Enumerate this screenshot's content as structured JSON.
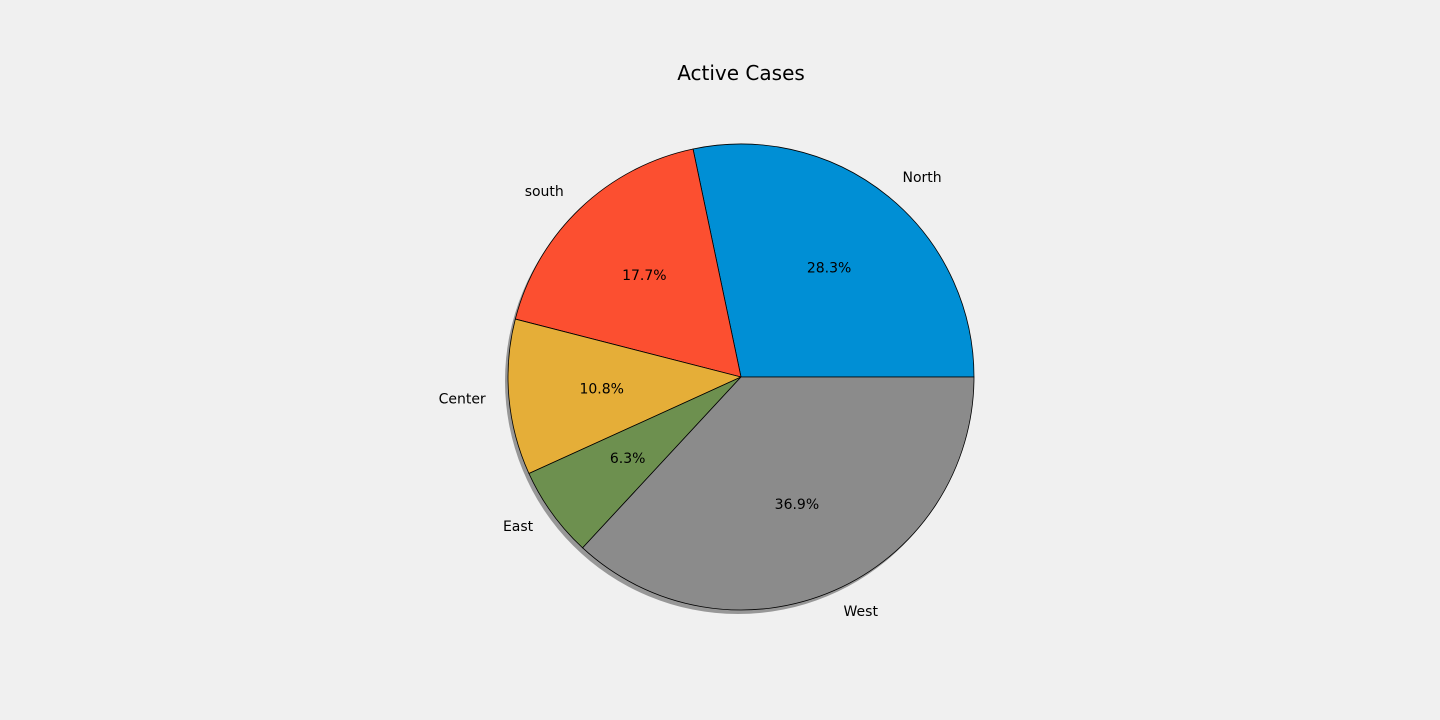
{
  "chart_data": {
    "type": "pie",
    "title": "Active Cases",
    "categories": [
      "North",
      "south",
      "Center",
      "East",
      "West"
    ],
    "values": [
      28.3,
      17.7,
      10.8,
      6.3,
      36.9
    ],
    "percent_labels": [
      "28.3%",
      "17.7%",
      "10.8%",
      "6.3%",
      "36.9%"
    ],
    "colors": [
      "#008fd5",
      "#fc4f30",
      "#e5ae38",
      "#6d904f",
      "#8b8b8b"
    ],
    "start_angle_deg": 0,
    "direction": "counterclockwise",
    "shadow": true,
    "edge_color": "#000000",
    "background_color": "#f0f0f0"
  }
}
